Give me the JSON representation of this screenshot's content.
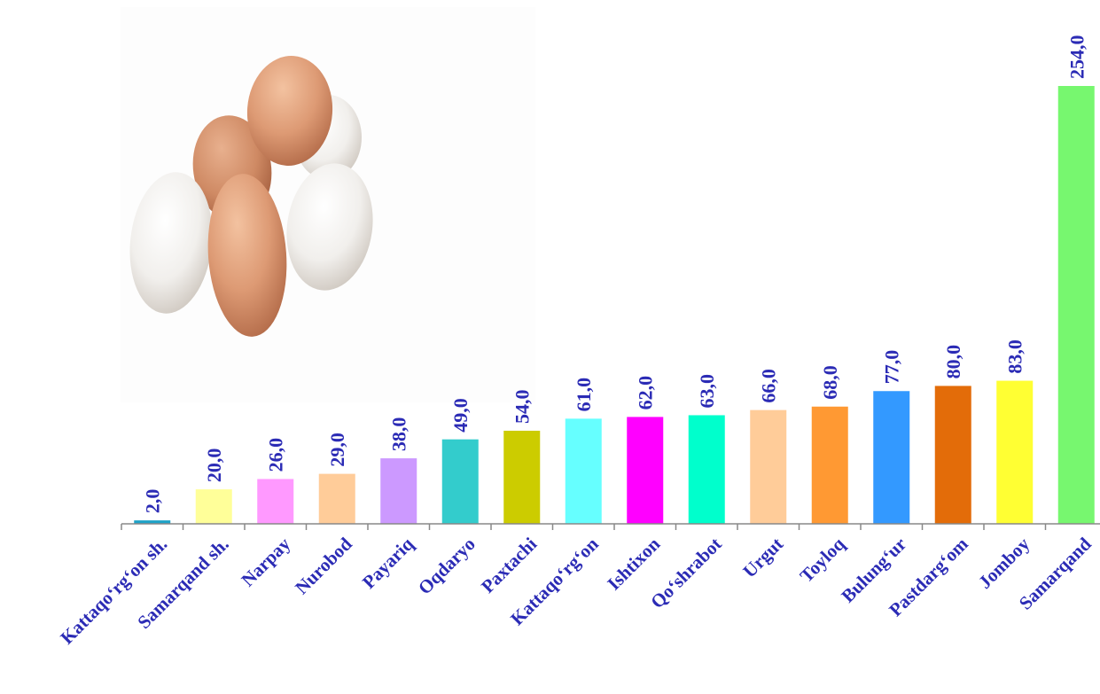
{
  "chart_data": {
    "type": "bar",
    "title": "",
    "xlabel": "",
    "ylabel": "",
    "ylim": [
      0,
      260
    ],
    "grid": false,
    "legend": "none",
    "categories": [
      "Kattaqo‘rg‘on sh.",
      "Samarqand sh.",
      "Narpay",
      "Nurobod",
      "Payariq",
      "Oqdaryo",
      "Paxtachi",
      "Kattaqo‘rg‘on",
      "Ishtixon",
      "Qo‘shrabot",
      "Urgut",
      "Toyloq",
      "Bulung‘ur",
      "Pastdarg‘om",
      "Jomboy",
      "Samarqand"
    ],
    "values": [
      2.0,
      20.0,
      26.0,
      29.0,
      38.0,
      49.0,
      54.0,
      61.0,
      62.0,
      63.0,
      66.0,
      68.0,
      77.0,
      80.0,
      83.0,
      254.0
    ],
    "value_labels": [
      "2,0",
      "20,0",
      "26,0",
      "29,0",
      "38,0",
      "49,0",
      "54,0",
      "61,0",
      "62,0",
      "63,0",
      "66,0",
      "68,0",
      "77,0",
      "80,0",
      "83,0",
      "254,0"
    ],
    "colors": [
      "#1FA3C8",
      "#FFFF99",
      "#FF99FF",
      "#FFCC99",
      "#CC99FF",
      "#33CCCC",
      "#CCCC00",
      "#66FFFF",
      "#FF00FF",
      "#00FFCC",
      "#FFCC99",
      "#FF9933",
      "#3399FF",
      "#E36C09",
      "#FFFF33",
      "#77F76F"
    ],
    "label_color": "#2B2BB5",
    "axis_color": "#888888"
  },
  "decoration": {
    "image_icon": "eggs-photo-icon"
  }
}
